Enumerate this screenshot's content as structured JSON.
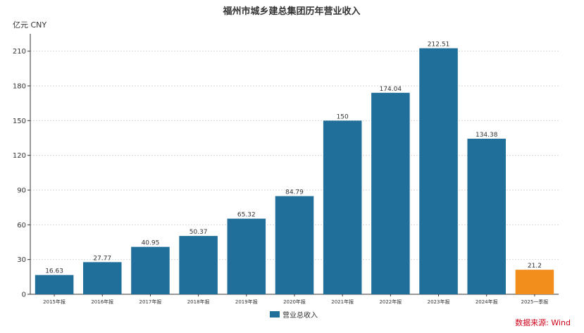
{
  "chart_data": {
    "type": "bar",
    "title": "福州市城乡建总集团历年营业收入",
    "unit_label": "亿元  CNY",
    "categories": [
      "2015年报",
      "2016年报",
      "2017年报",
      "2018年报",
      "2019年报",
      "2020年报",
      "2021年报",
      "2022年报",
      "2023年报",
      "2024年报",
      "2025一季报"
    ],
    "series": [
      {
        "name": "营业总收入",
        "values": [
          16.63,
          27.77,
          40.95,
          50.37,
          65.32,
          84.79,
          150,
          174.04,
          212.51,
          134.38,
          21.2
        ],
        "labels": [
          "16.63",
          "27.77",
          "40.95",
          "50.37",
          "65.32",
          "84.79",
          "150",
          "174.04",
          "212.51",
          "134.38",
          "21.2"
        ]
      }
    ],
    "bar_colors": [
      "#1f6f9a",
      "#1f6f9a",
      "#1f6f9a",
      "#1f6f9a",
      "#1f6f9a",
      "#1f6f9a",
      "#1f6f9a",
      "#1f6f9a",
      "#1f6f9a",
      "#1f6f9a",
      "#f28e1c"
    ],
    "ylim": [
      0,
      225
    ],
    "yticks": [
      0,
      30,
      60,
      90,
      120,
      150,
      180,
      210
    ],
    "grid": true,
    "legend_position": "bottom-center",
    "source": "数据来源: Wind"
  }
}
